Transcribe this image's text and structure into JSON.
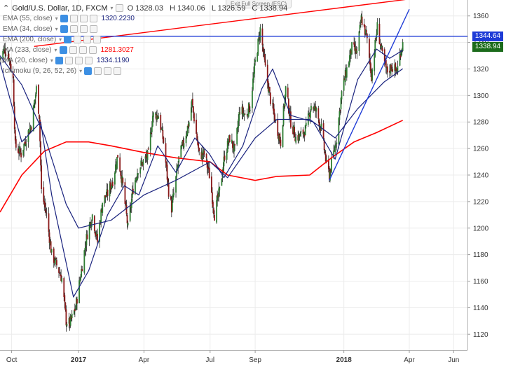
{
  "header": {
    "symbol": "Gold/U.S. Dollar, 1D, FXCM",
    "ohlc": {
      "open": "O 1328.03",
      "high": "H 1340.06",
      "low": "L 1326.59",
      "close": "C 1338.94"
    },
    "exit_fullscreen": "Exit Full Screen (ESC)"
  },
  "indicators": [
    {
      "name": "EMA (55, close)",
      "value": "1320.2230",
      "color": "#1a237e"
    },
    {
      "name": "EMA (34, close)",
      "value": "",
      "color": "#1a237e"
    },
    {
      "name": "EMA (200, close)",
      "value": "",
      "color": "#1a237e"
    },
    {
      "name": "MA (233, close)",
      "value": "1281.3027",
      "color": "#ff0000"
    },
    {
      "name": "MA (20, close)",
      "value": "1334.1190",
      "color": "#1a237e"
    },
    {
      "name": "Ichimoku (9, 26, 52, 26)",
      "value": "",
      "color": "#888888"
    }
  ],
  "badges": {
    "horizontal_level": {
      "label": "1344.64",
      "value": 1344.64,
      "color": "#1e3bd6"
    },
    "last_price": {
      "label": "1338.94",
      "value": 1338.94,
      "color": "#1b6b1b"
    }
  },
  "chart_data": {
    "type": "line",
    "title": "Gold/U.S. Dollar, 1D, FXCM",
    "x_range": [
      "2016-09-15",
      "2018-06-20"
    ],
    "ylim": [
      1108,
      1372
    ],
    "y_ticks": [
      1120,
      1140,
      1160,
      1180,
      1200,
      1220,
      1240,
      1260,
      1280,
      1300,
      1320,
      1340,
      1360
    ],
    "x_ticks": [
      {
        "label": "Oct",
        "date": "2016-10-01",
        "bold": false
      },
      {
        "label": "2017",
        "date": "2017-01-01",
        "bold": true
      },
      {
        "label": "Apr",
        "date": "2017-04-01",
        "bold": false
      },
      {
        "label": "Jul",
        "date": "2017-07-01",
        "bold": false
      },
      {
        "label": "Sep",
        "date": "2017-09-01",
        "bold": false
      },
      {
        "label": "2018",
        "date": "2018-01-01",
        "bold": true
      },
      {
        "label": "Apr",
        "date": "2018-04-01",
        "bold": false
      },
      {
        "label": "Jun",
        "date": "2018-06-01",
        "bold": false
      }
    ],
    "grid": true,
    "price_path": [
      [
        "2016-09-15",
        1328
      ],
      [
        "2016-09-21",
        1335
      ],
      [
        "2016-09-27",
        1330
      ],
      [
        "2016-10-03",
        1312
      ],
      [
        "2016-10-06",
        1262
      ],
      [
        "2016-10-14",
        1256
      ],
      [
        "2016-10-21",
        1268
      ],
      [
        "2016-10-28",
        1278
      ],
      [
        "2016-11-04",
        1305
      ],
      [
        "2016-11-08",
        1285
      ],
      [
        "2016-11-11",
        1228
      ],
      [
        "2016-11-18",
        1210
      ],
      [
        "2016-11-25",
        1180
      ],
      [
        "2016-12-02",
        1172
      ],
      [
        "2016-12-09",
        1162
      ],
      [
        "2016-12-15",
        1130
      ],
      [
        "2016-12-20",
        1128
      ],
      [
        "2016-12-28",
        1140
      ],
      [
        "2017-01-06",
        1172
      ],
      [
        "2017-01-13",
        1196
      ],
      [
        "2017-01-20",
        1210
      ],
      [
        "2017-01-27",
        1190
      ],
      [
        "2017-02-03",
        1220
      ],
      [
        "2017-02-10",
        1226
      ],
      [
        "2017-02-17",
        1236
      ],
      [
        "2017-02-24",
        1255
      ],
      [
        "2017-03-03",
        1232
      ],
      [
        "2017-03-10",
        1200
      ],
      [
        "2017-03-17",
        1230
      ],
      [
        "2017-03-24",
        1245
      ],
      [
        "2017-03-31",
        1250
      ],
      [
        "2017-04-07",
        1255
      ],
      [
        "2017-04-13",
        1285
      ],
      [
        "2017-04-21",
        1285
      ],
      [
        "2017-04-28",
        1265
      ],
      [
        "2017-05-05",
        1228
      ],
      [
        "2017-05-09",
        1215
      ],
      [
        "2017-05-19",
        1252
      ],
      [
        "2017-05-26",
        1266
      ],
      [
        "2017-06-02",
        1280
      ],
      [
        "2017-06-06",
        1295
      ],
      [
        "2017-06-16",
        1255
      ],
      [
        "2017-06-23",
        1256
      ],
      [
        "2017-06-30",
        1240
      ],
      [
        "2017-07-07",
        1210
      ],
      [
        "2017-07-14",
        1228
      ],
      [
        "2017-07-21",
        1255
      ],
      [
        "2017-07-28",
        1268
      ],
      [
        "2017-08-04",
        1258
      ],
      [
        "2017-08-11",
        1290
      ],
      [
        "2017-08-18",
        1285
      ],
      [
        "2017-08-25",
        1292
      ],
      [
        "2017-09-01",
        1325
      ],
      [
        "2017-09-08",
        1350
      ],
      [
        "2017-09-15",
        1320
      ],
      [
        "2017-09-22",
        1297
      ],
      [
        "2017-09-29",
        1280
      ],
      [
        "2017-10-06",
        1265
      ],
      [
        "2017-10-13",
        1305
      ],
      [
        "2017-10-20",
        1280
      ],
      [
        "2017-10-27",
        1268
      ],
      [
        "2017-11-03",
        1270
      ],
      [
        "2017-11-10",
        1275
      ],
      [
        "2017-11-17",
        1293
      ],
      [
        "2017-11-24",
        1288
      ],
      [
        "2017-12-01",
        1275
      ],
      [
        "2017-12-08",
        1248
      ],
      [
        "2017-12-12",
        1240
      ],
      [
        "2017-12-22",
        1268
      ],
      [
        "2017-12-29",
        1302
      ],
      [
        "2018-01-05",
        1320
      ],
      [
        "2018-01-12",
        1336
      ],
      [
        "2018-01-19",
        1332
      ],
      [
        "2018-01-25",
        1358
      ],
      [
        "2018-02-01",
        1345
      ],
      [
        "2018-02-08",
        1315
      ],
      [
        "2018-02-16",
        1352
      ],
      [
        "2018-02-23",
        1330
      ],
      [
        "2018-03-01",
        1318
      ],
      [
        "2018-03-08",
        1322
      ],
      [
        "2018-03-15",
        1318
      ],
      [
        "2018-03-19",
        1330
      ],
      [
        "2018-03-21",
        1336
      ],
      [
        "2018-03-23",
        1338.94
      ]
    ],
    "series": [
      {
        "name": "MA (233, close)",
        "color": "#ff0000",
        "values": [
          [
            "2016-09-15",
            1212
          ],
          [
            "2016-10-15",
            1240
          ],
          [
            "2016-11-15",
            1258
          ],
          [
            "2016-12-15",
            1265
          ],
          [
            "2017-01-15",
            1265
          ],
          [
            "2017-02-15",
            1262
          ],
          [
            "2017-04-01",
            1257
          ],
          [
            "2017-05-15",
            1253
          ],
          [
            "2017-07-01",
            1250
          ],
          [
            "2017-07-25",
            1240
          ],
          [
            "2017-09-01",
            1236
          ],
          [
            "2017-10-01",
            1239
          ],
          [
            "2017-11-15",
            1240
          ],
          [
            "2017-12-15",
            1253
          ],
          [
            "2018-01-15",
            1265
          ],
          [
            "2018-02-15",
            1272
          ],
          [
            "2018-03-23",
            1281.3
          ]
        ]
      },
      {
        "name": "EMA (55, close)",
        "color": "#1a237e",
        "values": [
          [
            "2016-09-15",
            1330
          ],
          [
            "2016-10-15",
            1308
          ],
          [
            "2016-11-15",
            1270
          ],
          [
            "2016-12-15",
            1218
          ],
          [
            "2017-01-01",
            1200
          ],
          [
            "2017-02-15",
            1206
          ],
          [
            "2017-04-01",
            1225
          ],
          [
            "2017-05-15",
            1236
          ],
          [
            "2017-07-01",
            1250
          ],
          [
            "2017-07-25",
            1238
          ],
          [
            "2017-09-01",
            1268
          ],
          [
            "2017-10-01",
            1282
          ],
          [
            "2017-11-15",
            1282
          ],
          [
            "2017-12-20",
            1268
          ],
          [
            "2018-01-20",
            1290
          ],
          [
            "2018-02-25",
            1310
          ],
          [
            "2018-03-23",
            1320.2
          ]
        ]
      },
      {
        "name": "MA (20, close)",
        "color": "#1a237e",
        "values": [
          [
            "2016-09-15",
            1325
          ],
          [
            "2016-10-15",
            1265
          ],
          [
            "2016-11-10",
            1280
          ],
          [
            "2016-11-25",
            1225
          ],
          [
            "2016-12-25",
            1148
          ],
          [
            "2017-01-15",
            1168
          ],
          [
            "2017-02-10",
            1210
          ],
          [
            "2017-03-05",
            1232
          ],
          [
            "2017-03-25",
            1225
          ],
          [
            "2017-04-20",
            1262
          ],
          [
            "2017-05-15",
            1242
          ],
          [
            "2017-06-10",
            1268
          ],
          [
            "2017-06-30",
            1256
          ],
          [
            "2017-07-20",
            1238
          ],
          [
            "2017-08-15",
            1262
          ],
          [
            "2017-09-10",
            1305
          ],
          [
            "2017-09-25",
            1320
          ],
          [
            "2017-10-20",
            1285
          ],
          [
            "2017-11-20",
            1280
          ],
          [
            "2017-12-20",
            1252
          ],
          [
            "2018-01-20",
            1312
          ],
          [
            "2018-02-15",
            1335
          ],
          [
            "2018-03-05",
            1328
          ],
          [
            "2018-03-23",
            1334.1
          ]
        ]
      }
    ],
    "trendlines": [
      {
        "name": "resistance",
        "color": "#ff0000",
        "from": [
          "2016-11-01",
          1337
        ],
        "to": [
          "2018-04-05",
          1373
        ]
      },
      {
        "name": "horizontal",
        "color": "#1e3bd6",
        "from": [
          "2016-09-15",
          1344.64
        ],
        "to": [
          "2018-06-20",
          1344.64
        ]
      },
      {
        "name": "support",
        "color": "#1e3bd6",
        "from": [
          "2017-12-12",
          1236
        ],
        "to": [
          "2018-04-01",
          1365
        ]
      }
    ]
  }
}
